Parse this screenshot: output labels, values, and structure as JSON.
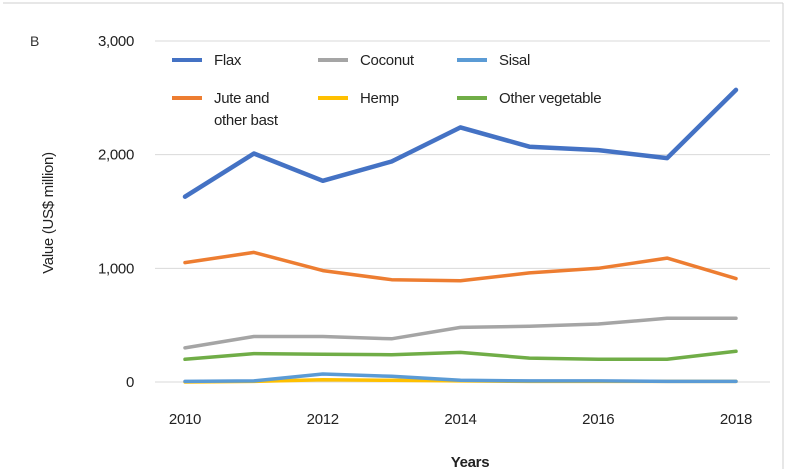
{
  "chart_data": {
    "type": "line",
    "panel_label": "B",
    "xlabel": "Years",
    "ylabel": "Value (US$ million)",
    "x": [
      2010,
      2011,
      2012,
      2013,
      2014,
      2015,
      2016,
      2017,
      2018
    ],
    "x_ticks": [
      "2010",
      "2012",
      "2014",
      "2016",
      "2018"
    ],
    "y_ticks": [
      "0",
      "1,000",
      "2,000",
      "3,000"
    ],
    "xlim": [
      2010,
      2018
    ],
    "ylim": [
      0,
      3000
    ],
    "grid": true,
    "legend_position": "top",
    "series": [
      {
        "name": "Flax",
        "color": "#4472C4",
        "values": [
          1630,
          2010,
          1770,
          1940,
          2240,
          2070,
          2040,
          1970,
          2570
        ]
      },
      {
        "name": "Coconut",
        "color": "#A5A5A5",
        "values": [
          300,
          400,
          400,
          380,
          480,
          490,
          510,
          560,
          560
        ]
      },
      {
        "name": "Sisal",
        "color": "#5B9BD5",
        "values": [
          5,
          10,
          70,
          50,
          15,
          10,
          10,
          5,
          5
        ]
      },
      {
        "name": "Jute and\nother bast",
        "color": "#ED7D31",
        "values": [
          1050,
          1140,
          980,
          900,
          890,
          960,
          1000,
          1090,
          910
        ]
      },
      {
        "name": "Hemp",
        "color": "#FFC000",
        "values": [
          0,
          5,
          20,
          15,
          10,
          5,
          5,
          5,
          5
        ]
      },
      {
        "name": "Other vegetable",
        "color": "#70AD47",
        "values": [
          200,
          250,
          245,
          240,
          260,
          210,
          200,
          200,
          270
        ]
      }
    ]
  }
}
